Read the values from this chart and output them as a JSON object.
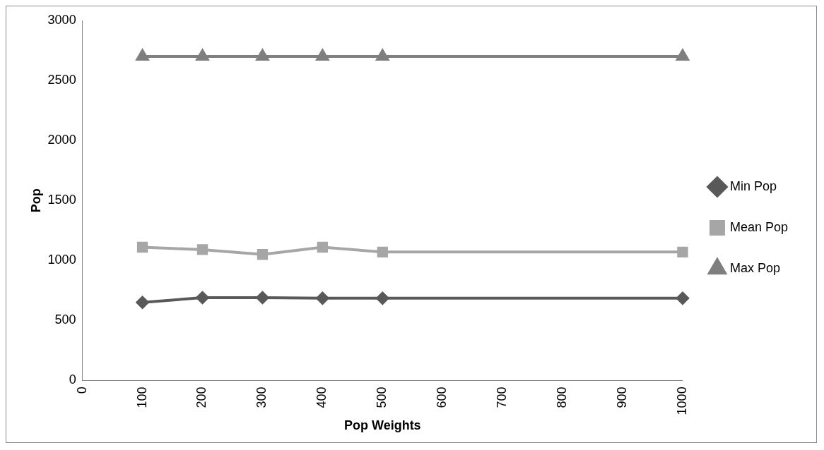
{
  "chart_data": {
    "type": "line",
    "xlabel": "Pop Weights",
    "ylabel": "Pop",
    "x": [
      100,
      200,
      300,
      400,
      500,
      1000
    ],
    "series": [
      {
        "name": "Min Pop",
        "color": "#595959",
        "marker": "diamond",
        "values": [
          650,
          690,
          690,
          685,
          685,
          685
        ]
      },
      {
        "name": "Mean Pop",
        "color": "#a6a6a6",
        "marker": "square",
        "values": [
          1110,
          1090,
          1050,
          1110,
          1070,
          1070
        ]
      },
      {
        "name": "Max Pop",
        "color": "#7f7f7f",
        "marker": "triangle",
        "values": [
          2700,
          2700,
          2700,
          2700,
          2700,
          2700
        ]
      }
    ],
    "xlim": [
      0,
      1000
    ],
    "xticks": [
      0,
      100,
      200,
      300,
      400,
      500,
      600,
      700,
      800,
      900,
      1000
    ],
    "ylim": [
      0,
      3000
    ],
    "yticks": [
      0,
      500,
      1000,
      1500,
      2000,
      2500,
      3000
    ],
    "grid": false,
    "legend": "right",
    "line_style": "solid"
  }
}
